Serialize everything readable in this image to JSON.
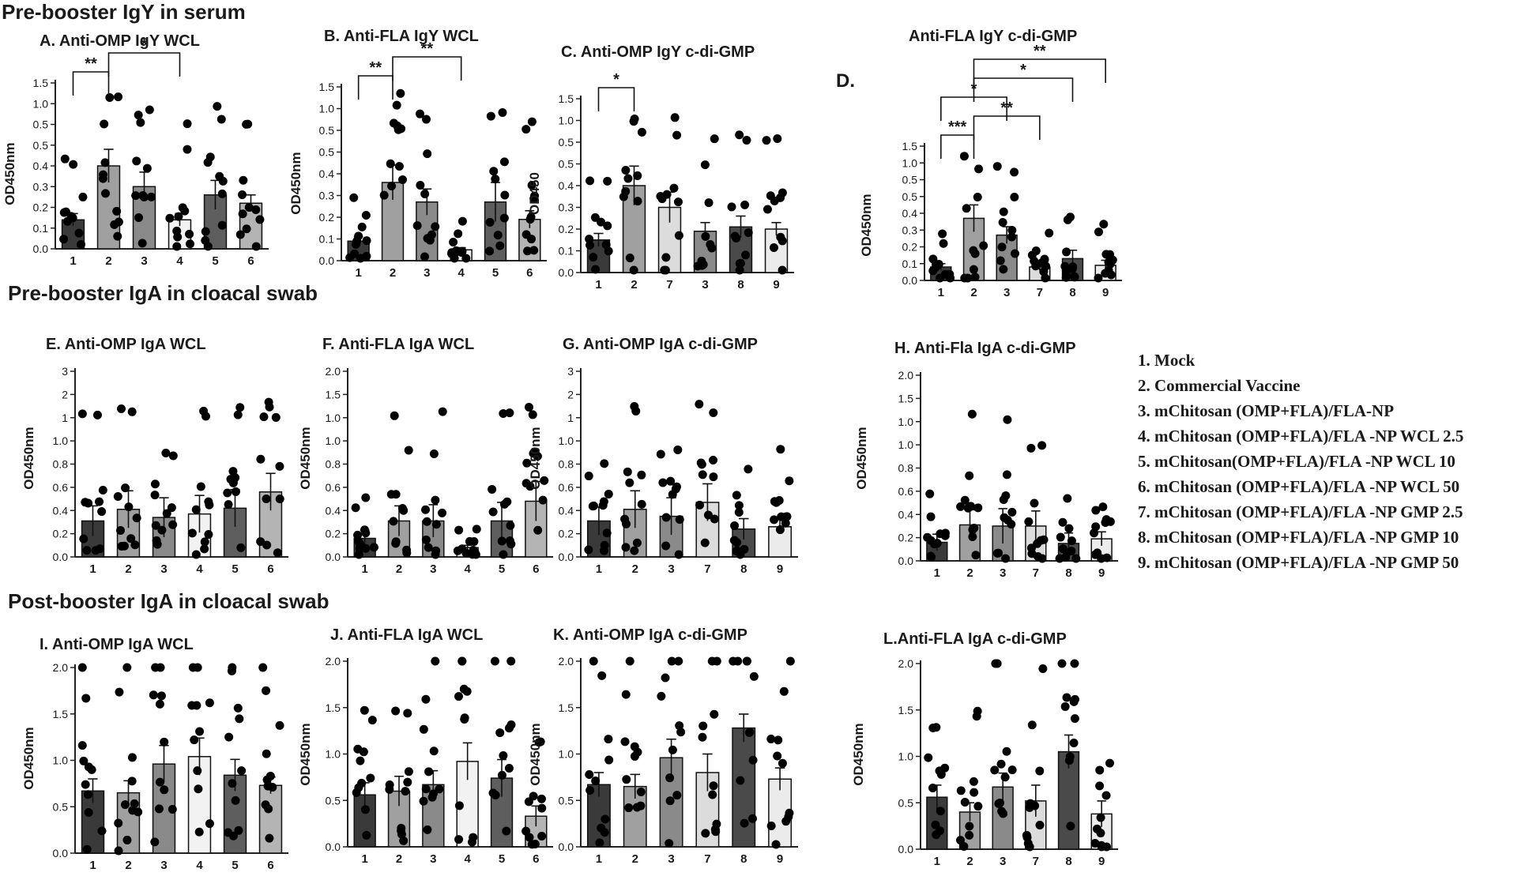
{
  "section_titles": [
    "Pre-booster IgY in serum",
    "Pre-booster IgA in cloacal swab",
    "Post-booster IgA in cloacal swab"
  ],
  "legend": [
    "1.   Mock",
    "2.   Commercial Vaccine",
    "3.   mChitosan (OMP+FLA)/FLA-NP",
    "4.   mChitosan (OMP+FLA)/FLA -NP WCL 2.5",
    "5.   mChitosan(OMP+FLA)/FLA -NP WCL 10",
    "6.   mChitosan (OMP+FLA)/FLA -NP WCL 50",
    "7.   mChitosan (OMP+FLA)/FLA -NP GMP 2.5",
    "8.   mChitosan (OMP+FLA)/FLA -NP GMP 10",
    "9.   mChitosan (OMP+FLA)/FLA -NP GMP 50"
  ],
  "colors": {
    "1": "#3a3a3a",
    "2": "#a0a0a0",
    "3": "#8a8a8a",
    "4": "#f2f2f2",
    "5": "#5e5e5e",
    "6": "#b4b4b4",
    "7": "#dcdcdc",
    "8": "#4a4a4a",
    "9": "#ebebeb",
    "point": "#000000",
    "axis": "#222222"
  },
  "chart_data": [
    {
      "id": "A",
      "title": "A.  Anti-OMP IgY WCL",
      "type": "bar",
      "ylabel": "OD450nm",
      "ylim": [
        0,
        1.5
      ],
      "yticks": [
        "0.0",
        "0.1",
        "0.2",
        "0.3",
        "0.4",
        "0.5",
        "0.5",
        "1.0",
        "1.5"
      ],
      "categories": [
        "1",
        "2",
        "3",
        "4",
        "5",
        "6"
      ],
      "values": [
        0.14,
        0.4,
        0.3,
        0.14,
        0.26,
        0.22
      ],
      "errors": [
        0.03,
        0.08,
        0.07,
        0.03,
        0.07,
        0.04
      ],
      "brackets": [
        {
          "from": "1",
          "to": "2",
          "label": "**"
        },
        {
          "from": "2",
          "to": "4",
          "label": "*"
        }
      ]
    },
    {
      "id": "B",
      "title": "B.  Anti-FLA IgY WCL",
      "type": "bar",
      "ylabel": "OD450nm",
      "ylim": [
        0,
        1.5
      ],
      "yticks": [
        "0.0",
        "0.1",
        "0.2",
        "0.3",
        "0.4",
        "0.5",
        "0.5",
        "1.0",
        "1.5"
      ],
      "categories": [
        "1",
        "2",
        "3",
        "4",
        "5",
        "6"
      ],
      "values": [
        0.09,
        0.36,
        0.27,
        0.05,
        0.27,
        0.19
      ],
      "errors": [
        0.02,
        0.08,
        0.06,
        0.01,
        0.09,
        0.04
      ],
      "brackets": [
        {
          "from": "1",
          "to": "2",
          "label": "**"
        },
        {
          "from": "2",
          "to": "4",
          "label": "**"
        }
      ]
    },
    {
      "id": "C",
      "title": "C.  Anti-OMP IgY c-di-GMP",
      "type": "bar",
      "ylabel": "OD450",
      "ylim": [
        0,
        1.5
      ],
      "yticks": [
        "0.0",
        "0.1",
        "0.2",
        "0.3",
        "0.4",
        "0.5",
        "0.5",
        "1.0",
        "1.5"
      ],
      "categories": [
        "1",
        "2",
        "7",
        "3",
        "8",
        "9"
      ],
      "values": [
        0.15,
        0.4,
        0.3,
        0.19,
        0.21,
        0.2
      ],
      "errors": [
        0.03,
        0.09,
        0.07,
        0.04,
        0.05,
        0.03
      ],
      "brackets": [
        {
          "from": "1",
          "to": "2",
          "label": "*"
        }
      ]
    },
    {
      "id": "D",
      "title": "Anti-FLA IgY c-di-GMP",
      "panel_letter": "D.",
      "type": "bar",
      "ylabel": "OD450nm",
      "ylim": [
        0,
        1.5
      ],
      "yticks": [
        "0.0",
        "0.1",
        "0.2",
        "0.3",
        "0.4",
        "0.5",
        "0.5",
        "1.0",
        "1.5"
      ],
      "categories": [
        "1",
        "2",
        "3",
        "7",
        "8",
        "9"
      ],
      "values": [
        0.08,
        0.37,
        0.27,
        0.08,
        0.13,
        0.09
      ],
      "errors": [
        0.02,
        0.08,
        0.05,
        0.02,
        0.05,
        0.03
      ],
      "brackets": [
        {
          "from": "1",
          "to": "2",
          "label": "***"
        },
        {
          "from": "2",
          "to": "7",
          "label": "**"
        },
        {
          "from": "1",
          "to": "3",
          "label": "*"
        },
        {
          "from": "2",
          "to": "8",
          "label": "*"
        },
        {
          "from": "2",
          "to": "9",
          "label": "**"
        }
      ]
    },
    {
      "id": "E",
      "title": "E.      Anti-OMP   IgA WCL",
      "type": "bar",
      "ylabel": "OD450nm",
      "ylim": [
        0,
        3
      ],
      "yticks": [
        "0.0",
        "0.2",
        "0.4",
        "0.6",
        "0.8",
        "1.0",
        "1",
        "2",
        "3"
      ],
      "categories": [
        "1",
        "2",
        "3",
        "4",
        "5",
        "6"
      ],
      "values": [
        0.31,
        0.41,
        0.34,
        0.37,
        0.42,
        0.56
      ],
      "errors": [
        0.13,
        0.16,
        0.17,
        0.16,
        0.16,
        0.16
      ],
      "brackets": []
    },
    {
      "id": "F",
      "title": "F.   Anti-FLA   IgA WCL",
      "type": "bar",
      "ylabel": "OD450nm",
      "ylim": [
        0,
        2
      ],
      "yticks": [
        "0.0",
        "0.2",
        "0.4",
        "0.6",
        "0.8",
        "1.0",
        "1.0",
        "1.5",
        "2.0"
      ],
      "categories": [
        "1",
        "2",
        "3",
        "4",
        "5",
        "6"
      ],
      "values": [
        0.16,
        0.31,
        0.31,
        0.08,
        0.31,
        0.48
      ],
      "errors": [
        0.07,
        0.13,
        0.14,
        0.02,
        0.16,
        0.17
      ],
      "brackets": []
    },
    {
      "id": "G",
      "title": "G.  Anti-OMP   IgA c-di-GMP",
      "type": "bar",
      "ylabel": "OD450nm",
      "ylim": [
        0,
        3
      ],
      "yticks": [
        "0.0",
        "0.2",
        "0.4",
        "0.6",
        "0.8",
        "1.0",
        "1",
        "2",
        "3"
      ],
      "categories": [
        "1",
        "2",
        "3",
        "7",
        "8",
        "9"
      ],
      "values": [
        0.31,
        0.41,
        0.35,
        0.47,
        0.24,
        0.26
      ],
      "errors": [
        0.12,
        0.16,
        0.16,
        0.16,
        0.09,
        0.06
      ],
      "brackets": []
    },
    {
      "id": "H",
      "title": "H.   Anti-Fla IgA c-di-GMP",
      "type": "bar",
      "ylabel": "OD450nm",
      "ylim": [
        0,
        2
      ],
      "yticks": [
        "0.0",
        "0.2",
        "0.4",
        "0.6",
        "0.8",
        "1.0",
        "1.0",
        "1.5",
        "2.0"
      ],
      "categories": [
        "1",
        "2",
        "3",
        "7",
        "8",
        "9"
      ],
      "values": [
        0.16,
        0.31,
        0.3,
        0.3,
        0.15,
        0.19
      ],
      "errors": [
        0.07,
        0.13,
        0.15,
        0.13,
        0.09,
        0.06
      ],
      "brackets": []
    },
    {
      "id": "I",
      "title": "I.     Anti-OMP IgA WCL",
      "type": "bar",
      "ylabel": "OD450nm",
      "ylim": [
        0,
        2
      ],
      "yticks": [
        "0.0",
        "0.5",
        "1.0",
        "1.5",
        "2.0"
      ],
      "categories": [
        "1",
        "2",
        "3",
        "4",
        "5",
        "6"
      ],
      "values": [
        0.67,
        0.65,
        0.96,
        1.04,
        0.84,
        0.73
      ],
      "errors": [
        0.13,
        0.13,
        0.2,
        0.2,
        0.17,
        0.09
      ],
      "brackets": []
    },
    {
      "id": "J",
      "title": "J.  Anti-FLA IgA WCL",
      "type": "bar",
      "ylabel": "OD450nm",
      "ylim": [
        0,
        2
      ],
      "yticks": [
        "0.0",
        "0.5",
        "1.0",
        "1.5",
        "2.0"
      ],
      "categories": [
        "1",
        "2",
        "3",
        "4",
        "5",
        "6"
      ],
      "values": [
        0.56,
        0.6,
        0.67,
        0.92,
        0.74,
        0.33
      ],
      "errors": [
        0.13,
        0.16,
        0.15,
        0.2,
        0.2,
        0.11
      ],
      "brackets": []
    },
    {
      "id": "K",
      "title": "K.   Anti-OMP IgA c-di-GMP",
      "type": "bar",
      "ylabel": "OD450nm",
      "ylim": [
        0,
        2
      ],
      "yticks": [
        "0.0",
        "0.5",
        "1.0",
        "1.5",
        "2.0"
      ],
      "categories": [
        "1",
        "2",
        "3",
        "7",
        "8",
        "9"
      ],
      "values": [
        0.67,
        0.65,
        0.96,
        0.8,
        1.28,
        0.73
      ],
      "errors": [
        0.13,
        0.13,
        0.2,
        0.2,
        0.15,
        0.12
      ],
      "brackets": []
    },
    {
      "id": "L",
      "title": "L.Anti-FLA IgA c-di-GMP",
      "type": "bar",
      "ylabel": "OD450nm",
      "ylim": [
        0,
        2
      ],
      "yticks": [
        "0.0",
        "0.5",
        "1.0",
        "1.5",
        "2.0"
      ],
      "categories": [
        "1",
        "2",
        "3",
        "7",
        "8",
        "9"
      ],
      "values": [
        0.56,
        0.4,
        0.67,
        0.52,
        1.05,
        0.38
      ],
      "errors": [
        0.13,
        0.1,
        0.15,
        0.17,
        0.18,
        0.14
      ],
      "brackets": []
    }
  ]
}
